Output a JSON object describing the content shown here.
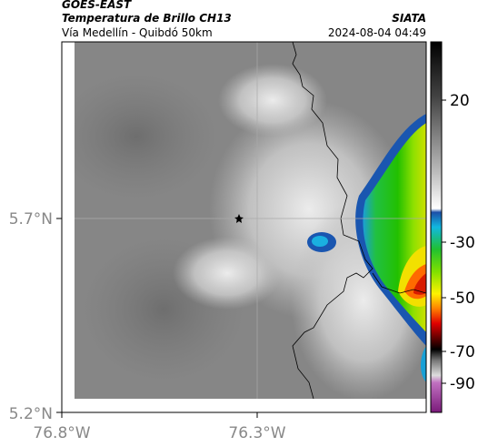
{
  "header": {
    "title": "GOES-EAST",
    "subtitle": "Temperatura de Brillo CH13",
    "source": "SIATA",
    "route": "Vía Medellín - Quibdó 50km",
    "timestamp": "2024-08-04 04:49"
  },
  "map": {
    "x_labels": [
      "76.8°W",
      "76.3°W"
    ],
    "y_labels": [
      "5.7°N",
      "5.2°N"
    ]
  },
  "colorbar": {
    "ticks": [
      "20",
      "-30",
      "-50",
      "-70",
      "-90"
    ]
  }
}
